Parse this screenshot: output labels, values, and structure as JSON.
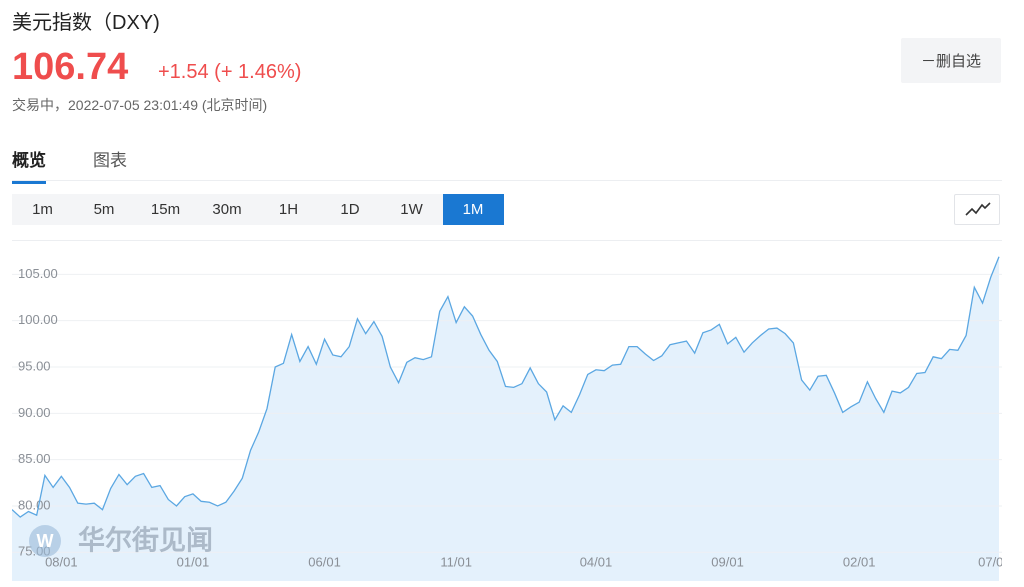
{
  "header": {
    "title": "美元指数（DXY)",
    "price": "106.74",
    "change": "+1.54 (+ 1.46%)",
    "status": "交易中，2022-07-05 23:01:49 (北京时间)",
    "button": "－删自选"
  },
  "tabs": {
    "items": [
      "概览",
      "图表"
    ],
    "selected": 0
  },
  "periods": {
    "items": [
      "1m",
      "5m",
      "15m",
      "30m",
      "1H",
      "1D",
      "1W",
      "1M"
    ],
    "selected": 7
  },
  "chart_data": {
    "type": "area",
    "color": "#5ba7e2",
    "fill_color": "#e4f1fc",
    "grid": true,
    "watermark": "华尔街见闻",
    "ylim": [
      71.9,
      108.6
    ],
    "yticks": [
      {
        "value": 75,
        "label": "75.00"
      },
      {
        "value": 80,
        "label": "80.00"
      },
      {
        "value": 85,
        "label": "85.00"
      },
      {
        "value": 90,
        "label": "90.00"
      },
      {
        "value": 95,
        "label": "95.00"
      },
      {
        "value": 100,
        "label": "100.00"
      },
      {
        "value": 105,
        "label": "105.00"
      }
    ],
    "categories": [
      null,
      null,
      null,
      null,
      null,
      null,
      "08/01",
      null,
      null,
      null,
      null,
      null,
      null,
      null,
      null,
      null,
      null,
      null,
      null,
      null,
      null,
      null,
      "01/01",
      null,
      null,
      null,
      null,
      null,
      null,
      null,
      null,
      null,
      null,
      null,
      null,
      null,
      null,
      null,
      "06/01",
      null,
      null,
      null,
      null,
      null,
      null,
      null,
      null,
      null,
      null,
      null,
      null,
      null,
      null,
      null,
      "11/01",
      null,
      null,
      null,
      null,
      null,
      null,
      null,
      null,
      null,
      null,
      null,
      null,
      null,
      null,
      null,
      null,
      "04/01",
      null,
      null,
      null,
      null,
      null,
      null,
      null,
      null,
      null,
      null,
      null,
      null,
      null,
      null,
      null,
      "09/01",
      null,
      null,
      null,
      null,
      null,
      null,
      null,
      null,
      null,
      null,
      null,
      null,
      null,
      null,
      null,
      "02/01",
      null,
      null,
      null,
      null,
      null,
      null,
      null,
      null,
      null,
      null,
      null,
      null,
      null,
      null,
      null,
      "07/0",
      null
    ],
    "values": [
      79.6,
      78.8,
      79.4,
      79.0,
      83.3,
      82.0,
      83.2,
      82.0,
      80.3,
      80.2,
      80.3,
      79.6,
      81.9,
      83.4,
      82.3,
      83.2,
      83.5,
      82.0,
      82.2,
      80.7,
      80.0,
      81.0,
      81.3,
      80.5,
      80.4,
      80.0,
      80.4,
      81.6,
      83.0,
      86.0,
      88.0,
      90.5,
      95.0,
      95.4,
      98.5,
      95.6,
      97.2,
      95.3,
      98.0,
      96.3,
      96.1,
      97.2,
      100.2,
      98.6,
      99.9,
      98.3,
      95.0,
      93.3,
      95.5,
      96.0,
      95.8,
      96.1,
      101.0,
      102.6,
      99.8,
      101.5,
      100.5,
      98.5,
      96.8,
      95.6,
      92.9,
      92.8,
      93.2,
      94.9,
      93.2,
      92.3,
      89.3,
      90.8,
      90.1,
      92.0,
      94.2,
      94.7,
      94.6,
      95.2,
      95.3,
      97.2,
      97.2,
      96.4,
      95.7,
      96.2,
      97.4,
      97.6,
      97.8,
      96.5,
      98.7,
      99.0,
      99.6,
      97.5,
      98.2,
      96.6,
      97.6,
      98.4,
      99.1,
      99.2,
      98.6,
      97.6,
      93.6,
      92.5,
      94.0,
      94.1,
      92.2,
      90.1,
      90.7,
      91.2,
      93.4,
      91.6,
      90.1,
      92.4,
      92.2,
      92.8,
      94.3,
      94.4,
      96.1,
      95.9,
      96.9,
      96.8,
      98.4,
      103.6,
      101.9,
      104.7,
      106.9
    ]
  }
}
